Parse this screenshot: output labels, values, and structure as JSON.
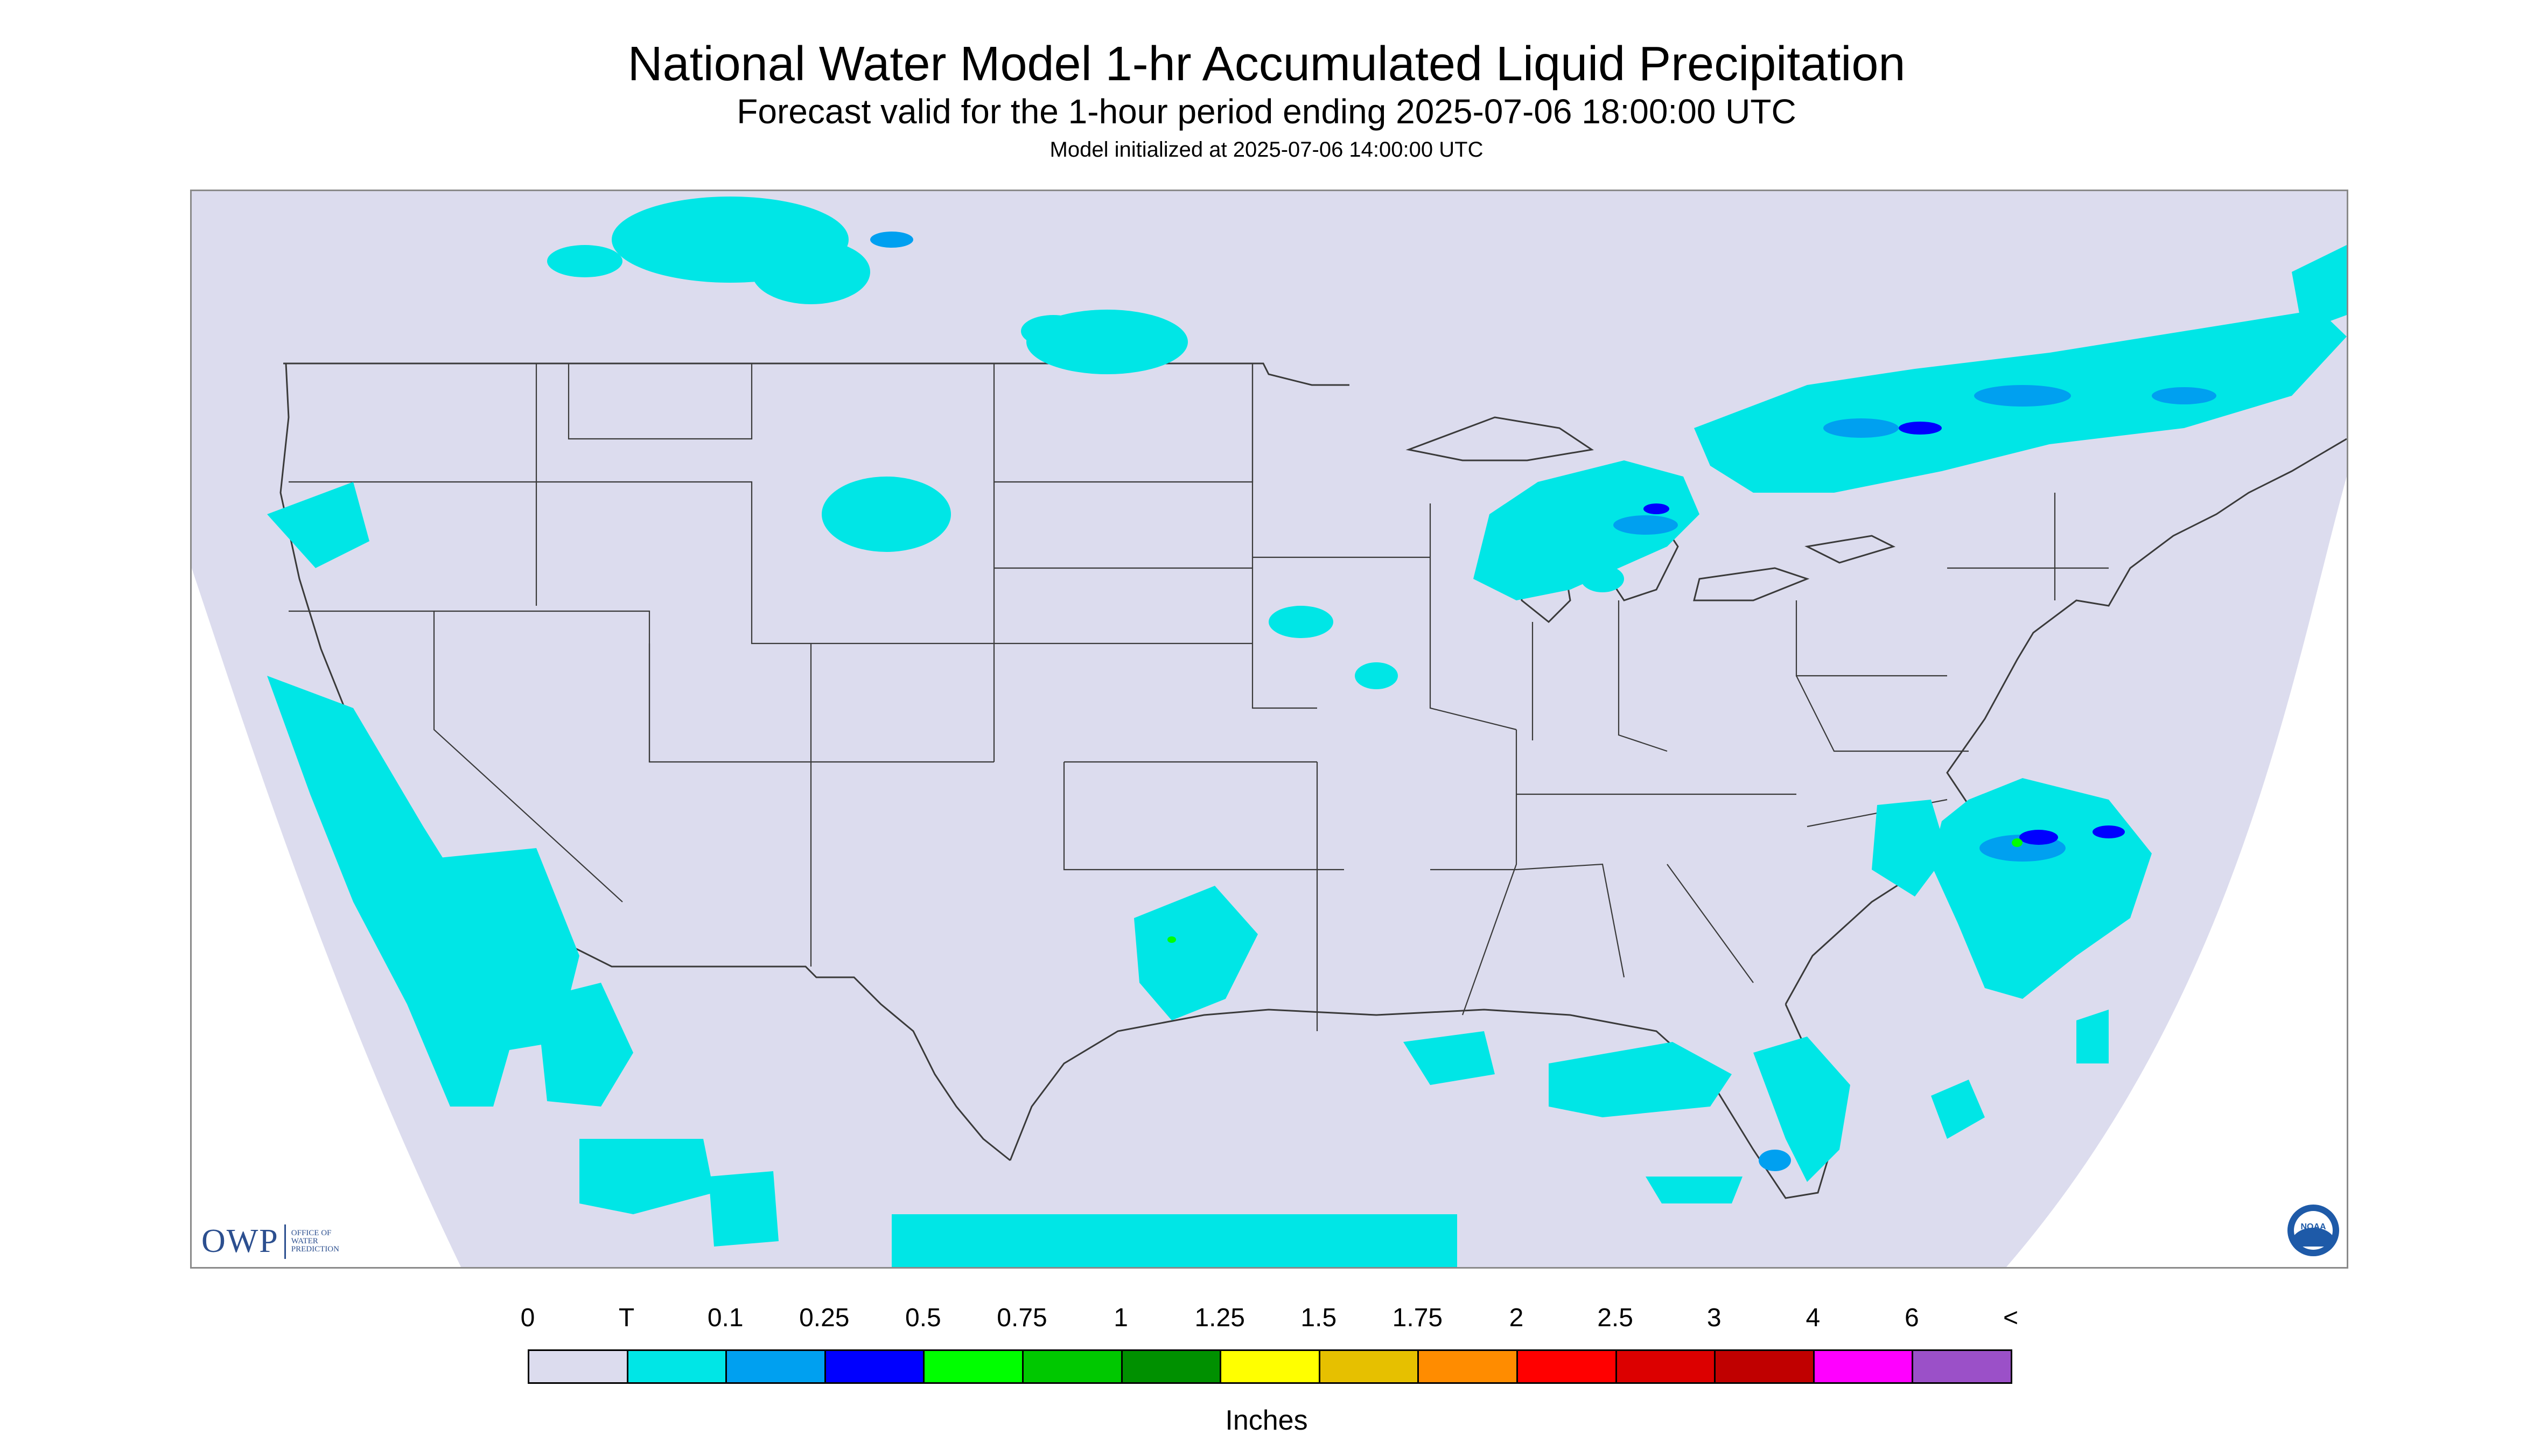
{
  "header": {
    "title": "National Water Model 1-hr Accumulated Liquid Precipitation",
    "subtitle": "Forecast valid for the 1-hour period ending 2025-07-06 18:00:00 UTC",
    "init": "Model initialized at 2025-07-06 14:00:00 UTC"
  },
  "map": {
    "background_color": "#dcdcee",
    "outside_color": "#ffffff",
    "boundary_color": "#3a3a3a",
    "precip_areas": [
      {
        "region": "Pacific coast / offshore",
        "class": "T"
      },
      {
        "region": "Southern Canada (Alberta/Saskatchewan)",
        "class": "T"
      },
      {
        "region": "South Dakota",
        "class": "T"
      },
      {
        "region": "Upper Michigan / Lake Michigan",
        "class": "0.1"
      },
      {
        "region": "Ontario / Quebec",
        "class": "0.1"
      },
      {
        "region": "Texas / Oklahoma",
        "class": "T"
      },
      {
        "region": "North Carolina coast",
        "class": "0.25"
      },
      {
        "region": "Gulf of Mexico",
        "class": "T"
      },
      {
        "region": "Florida",
        "class": "0.1"
      }
    ]
  },
  "logos": {
    "owp": {
      "mark": "OWP",
      "line1": "OFFICE OF",
      "line2": "WATER",
      "line3": "PREDICTION"
    },
    "noaa": {
      "text": "NOAA"
    }
  },
  "legend": {
    "labels": [
      "0",
      "T",
      "0.1",
      "0.25",
      "0.5",
      "0.75",
      "1",
      "1.25",
      "1.5",
      "1.75",
      "2",
      "2.5",
      "3",
      "4",
      "6",
      "<"
    ],
    "colors": [
      "#dcdcee",
      "#00e6e6",
      "#00a0f0",
      "#0000ff",
      "#00ff00",
      "#00c800",
      "#009000",
      "#ffff00",
      "#e6c000",
      "#ff8c00",
      "#ff0000",
      "#dc0000",
      "#c00000",
      "#ff00ff",
      "#9b50c8"
    ],
    "units": "Inches"
  }
}
